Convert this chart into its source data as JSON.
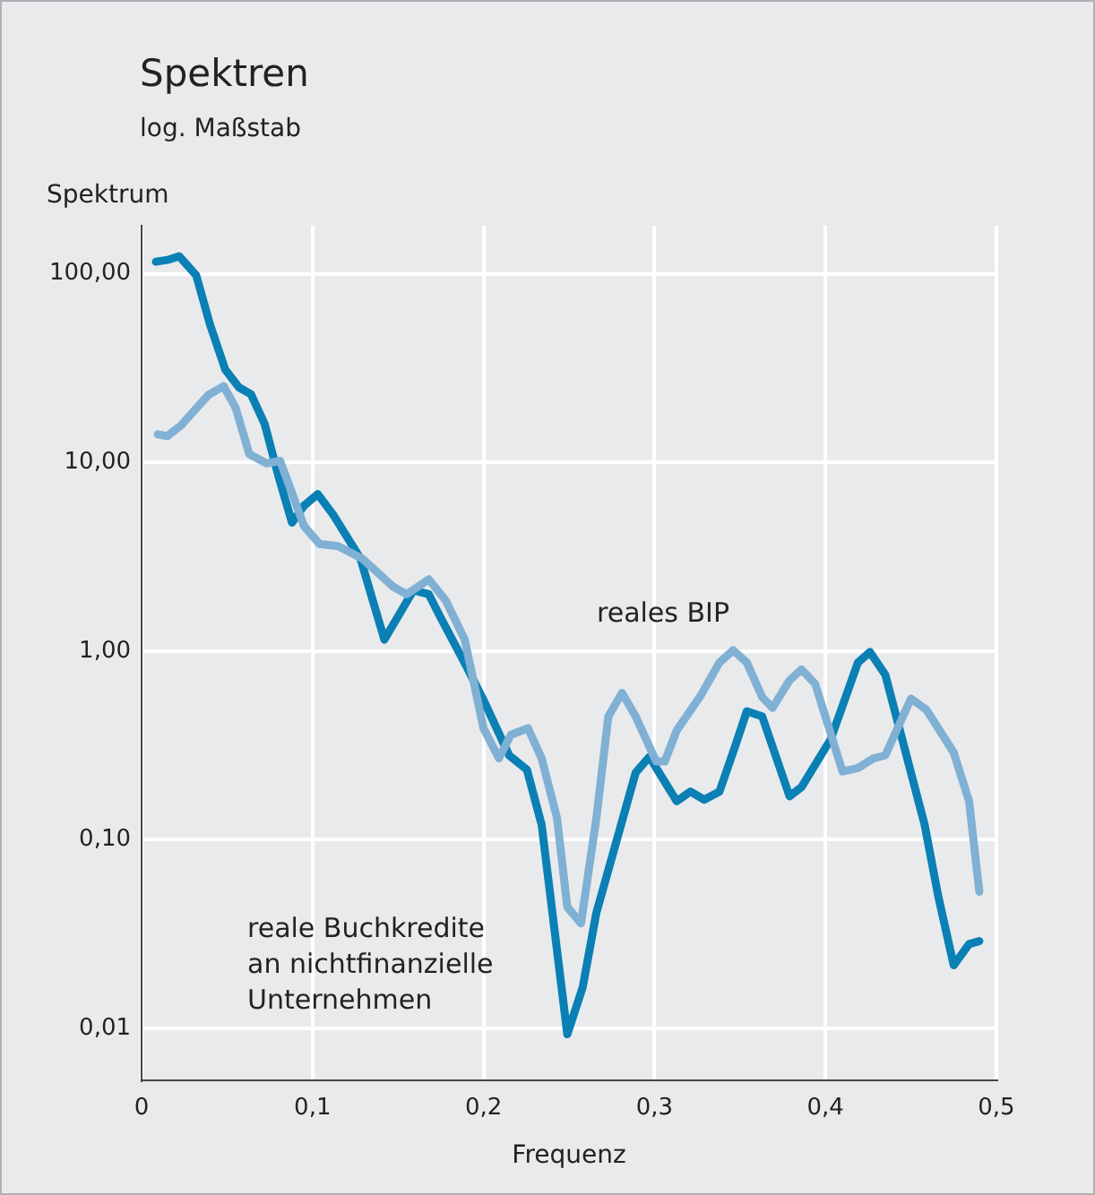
{
  "chart_data": {
    "type": "line",
    "title": "Spektren",
    "subtitle": "log. Maßstab",
    "ylabel": "Spektrum",
    "xlabel": "Frequenz",
    "log": "y",
    "grid": true,
    "legend": false,
    "marker": "none",
    "line_style": "solid",
    "xlim": [
      0,
      0.5
    ],
    "xticks": [
      0,
      {
        "value": 0.1,
        "label": "0,1"
      },
      {
        "value": 0.2,
        "label": "0,2"
      },
      {
        "value": 0.3,
        "label": "0,3"
      },
      {
        "value": 0.4,
        "label": "0,4"
      },
      {
        "value": 0.5,
        "label": "0,5"
      }
    ],
    "ylim": [
      0.0053,
      180
    ],
    "yticks": [
      {
        "value": 0.01,
        "label": "0,01"
      },
      {
        "value": 0.1,
        "label": "0,10"
      },
      {
        "value": 1,
        "label": "1,00"
      },
      {
        "value": 10,
        "label": "10,00"
      },
      {
        "value": 100,
        "label": "100,00"
      }
    ],
    "series": [
      {
        "name": "reales BIP",
        "color": "#80b0d4",
        "x": [
          0.0095,
          0.015,
          0.023,
          0.039,
          0.048,
          0.055,
          0.063,
          0.073,
          0.081,
          0.087,
          0.095,
          0.104,
          0.115,
          0.129,
          0.147,
          0.155,
          0.168,
          0.178,
          0.189,
          0.2,
          0.209,
          0.216,
          0.226,
          0.234,
          0.243,
          0.249,
          0.257,
          0.266,
          0.273,
          0.281,
          0.289,
          0.301,
          0.306,
          0.313,
          0.327,
          0.338,
          0.346,
          0.354,
          0.363,
          0.369,
          0.379,
          0.386,
          0.394,
          0.41,
          0.419,
          0.428,
          0.435,
          0.45,
          0.459,
          0.475,
          0.484,
          0.49
        ],
        "values": [
          14.1,
          13.8,
          15.7,
          22.8,
          25.4,
          19.5,
          11.1,
          9.9,
          10.2,
          7.3,
          4.6,
          3.7,
          3.6,
          3.1,
          2.2,
          2.0,
          2.4,
          1.85,
          1.15,
          0.39,
          0.27,
          0.36,
          0.39,
          0.27,
          0.13,
          0.044,
          0.036,
          0.13,
          0.45,
          0.6,
          0.45,
          0.26,
          0.26,
          0.38,
          0.58,
          0.87,
          1.01,
          0.87,
          0.57,
          0.5,
          0.7,
          0.8,
          0.67,
          0.23,
          0.24,
          0.27,
          0.28,
          0.56,
          0.49,
          0.29,
          0.16,
          0.053
        ]
      },
      {
        "name": "reale Buchkredite an nichtfinanzielle Unternehmen",
        "color": "#0a80b4",
        "x": [
          0.0084,
          0.016,
          0.022,
          0.032,
          0.04,
          0.049,
          0.057,
          0.064,
          0.072,
          0.08,
          0.088,
          0.095,
          0.103,
          0.112,
          0.128,
          0.142,
          0.159,
          0.168,
          0.175,
          0.19,
          0.2,
          0.215,
          0.2254,
          0.234,
          0.249,
          0.258,
          0.266,
          0.289,
          0.297,
          0.313,
          0.321,
          0.329,
          0.338,
          0.347,
          0.354,
          0.363,
          0.379,
          0.386,
          0.403,
          0.419,
          0.426,
          0.435,
          0.458,
          0.466,
          0.475,
          0.484,
          0.49
        ],
        "values": [
          116,
          119,
          124,
          98,
          54,
          31,
          25,
          23,
          16,
          8.5,
          4.8,
          5.9,
          6.8,
          5.3,
          3.1,
          1.15,
          2.1,
          2.0,
          1.5,
          0.83,
          0.55,
          0.28,
          0.235,
          0.12,
          0.0093,
          0.0165,
          0.041,
          0.227,
          0.275,
          0.16,
          0.18,
          0.163,
          0.18,
          0.31,
          0.48,
          0.45,
          0.17,
          0.19,
          0.34,
          0.87,
          0.99,
          0.75,
          0.12,
          0.05,
          0.0216,
          0.028,
          0.029
        ]
      }
    ]
  }
}
